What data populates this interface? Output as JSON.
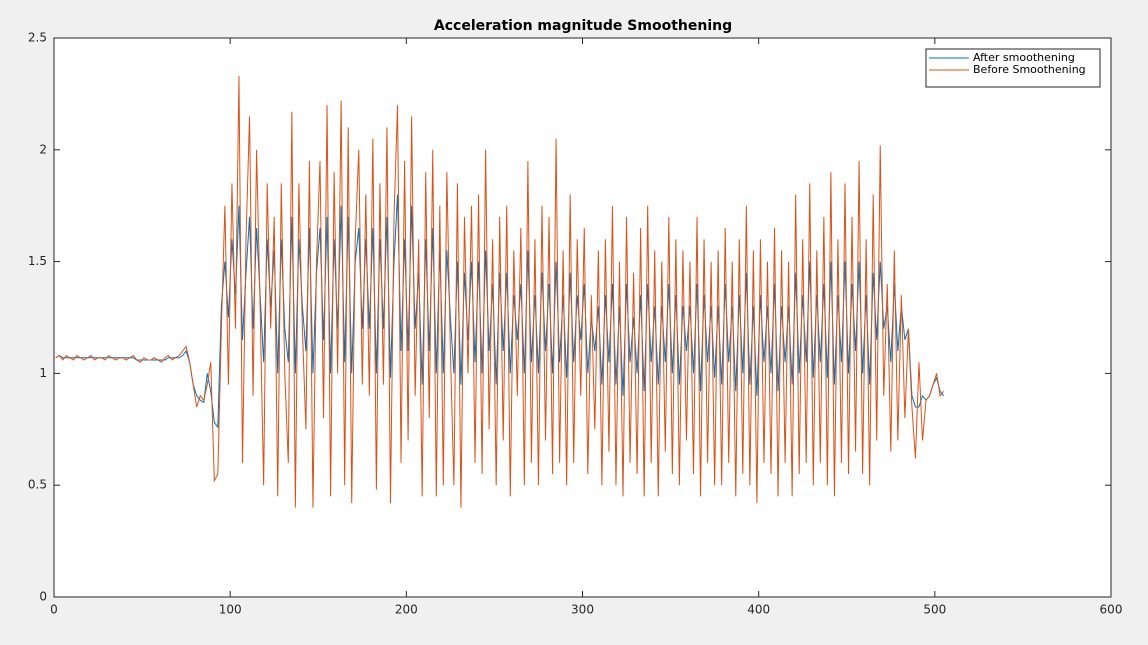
{
  "chart_data": {
    "type": "line",
    "title": "Acceleration magnitude Smoothening",
    "xlim": [
      0,
      600
    ],
    "xticks": [
      0,
      100,
      200,
      300,
      400,
      500,
      600
    ],
    "ylim": [
      0,
      2.5
    ],
    "yticks": [
      0,
      0.5,
      1,
      1.5,
      2,
      2.5
    ],
    "legend": "northeast",
    "grid": false,
    "x": [
      1,
      3,
      5,
      7,
      9,
      11,
      13,
      15,
      17,
      19,
      21,
      23,
      25,
      27,
      29,
      31,
      33,
      35,
      37,
      39,
      41,
      43,
      45,
      47,
      49,
      51,
      53,
      55,
      57,
      59,
      61,
      63,
      65,
      67,
      69,
      71,
      73,
      75,
      77,
      79,
      81,
      83,
      85,
      87,
      89,
      91,
      93,
      95,
      97,
      99,
      101,
      103,
      105,
      107,
      109,
      111,
      113,
      115,
      117,
      119,
      121,
      123,
      125,
      127,
      129,
      131,
      133,
      135,
      137,
      139,
      141,
      143,
      145,
      147,
      149,
      151,
      153,
      155,
      157,
      159,
      161,
      163,
      165,
      167,
      169,
      171,
      173,
      175,
      177,
      179,
      181,
      183,
      185,
      187,
      189,
      191,
      193,
      195,
      197,
      199,
      201,
      203,
      205,
      207,
      209,
      211,
      213,
      215,
      217,
      219,
      221,
      223,
      225,
      227,
      229,
      231,
      233,
      235,
      237,
      239,
      241,
      243,
      245,
      247,
      249,
      251,
      253,
      255,
      257,
      259,
      261,
      263,
      265,
      267,
      269,
      271,
      273,
      275,
      277,
      279,
      281,
      283,
      285,
      287,
      289,
      291,
      293,
      295,
      297,
      299,
      301,
      303,
      305,
      307,
      309,
      311,
      313,
      315,
      317,
      319,
      321,
      323,
      325,
      327,
      329,
      331,
      333,
      335,
      337,
      339,
      341,
      343,
      345,
      347,
      349,
      351,
      353,
      355,
      357,
      359,
      361,
      363,
      365,
      367,
      369,
      371,
      373,
      375,
      377,
      379,
      381,
      383,
      385,
      387,
      389,
      391,
      393,
      395,
      397,
      399,
      401,
      403,
      405,
      407,
      409,
      411,
      413,
      415,
      417,
      419,
      421,
      423,
      425,
      427,
      429,
      431,
      433,
      435,
      437,
      439,
      441,
      443,
      445,
      447,
      449,
      451,
      453,
      455,
      457,
      459,
      461,
      463,
      465,
      467,
      469,
      471,
      473,
      475,
      477,
      479,
      481,
      483,
      485,
      487,
      489,
      491,
      493,
      495,
      497,
      499,
      501,
      503,
      505
    ],
    "series": [
      {
        "name": "After smoothening",
        "color": "#0072bd",
        "values": [
          1.07,
          1.08,
          1.07,
          1.07,
          1.07,
          1.07,
          1.07,
          1.07,
          1.07,
          1.07,
          1.07,
          1.07,
          1.07,
          1.07,
          1.07,
          1.07,
          1.07,
          1.07,
          1.07,
          1.07,
          1.07,
          1.07,
          1.07,
          1.06,
          1.06,
          1.06,
          1.06,
          1.06,
          1.06,
          1.06,
          1.06,
          1.06,
          1.07,
          1.07,
          1.07,
          1.07,
          1.08,
          1.1,
          1.05,
          0.95,
          0.9,
          0.88,
          0.87,
          1.0,
          0.92,
          0.78,
          0.76,
          1.3,
          1.5,
          1.25,
          1.6,
          1.35,
          1.75,
          1.15,
          1.45,
          1.7,
          1.2,
          1.65,
          1.35,
          1.05,
          1.6,
          1.3,
          1.55,
          1.0,
          1.6,
          1.2,
          1.05,
          1.7,
          1.0,
          1.6,
          1.3,
          1.1,
          1.65,
          1.0,
          1.45,
          1.65,
          1.15,
          1.7,
          1.0,
          1.6,
          1.2,
          1.75,
          1.05,
          1.7,
          1.0,
          1.5,
          1.65,
          1.2,
          1.6,
          1.2,
          1.65,
          1.0,
          1.6,
          1.2,
          1.7,
          0.98,
          1.5,
          1.8,
          1.1,
          1.6,
          1.1,
          1.75,
          1.2,
          1.45,
          0.95,
          1.6,
          1.1,
          1.65,
          1.0,
          1.55,
          1.0,
          1.55,
          1.25,
          1.0,
          1.5,
          0.95,
          1.45,
          1.15,
          1.5,
          1.05,
          1.5,
          1.0,
          1.55,
          1.1,
          1.4,
          0.95,
          1.45,
          1.1,
          1.45,
          1.0,
          1.35,
          1.15,
          1.4,
          1.0,
          1.55,
          1.05,
          1.35,
          1.0,
          1.45,
          1.1,
          1.4,
          1.0,
          1.5,
          1.05,
          1.35,
          0.98,
          1.45,
          1.05,
          1.35,
          1.15,
          1.4,
          1.0,
          1.25,
          1.1,
          1.3,
          0.95,
          1.35,
          1.05,
          1.4,
          0.95,
          1.3,
          0.9,
          1.4,
          1.05,
          1.25,
          1.0,
          1.35,
          0.92,
          1.4,
          1.05,
          1.3,
          0.95,
          1.3,
          1.05,
          1.4,
          1.0,
          1.35,
          0.95,
          1.3,
          1.1,
          1.3,
          1.0,
          1.4,
          0.92,
          1.35,
          1.05,
          1.3,
          0.98,
          1.3,
          0.95,
          1.4,
          1.05,
          1.3,
          0.92,
          1.35,
          1.0,
          1.45,
          0.95,
          1.3,
          0.9,
          1.35,
          1.05,
          1.3,
          1.0,
          1.4,
          0.92,
          1.3,
          1.05,
          1.3,
          0.95,
          1.45,
          1.0,
          1.35,
          1.05,
          1.5,
          0.98,
          1.35,
          1.05,
          1.4,
          0.98,
          1.5,
          0.95,
          1.35,
          1.05,
          1.5,
          1.0,
          1.4,
          1.1,
          1.5,
          1.0,
          1.35,
          0.95,
          1.45,
          1.15,
          1.5,
          1.2,
          1.3,
          1.05,
          1.4,
          1.1,
          1.3,
          1.15,
          1.2,
          0.9,
          0.85,
          0.85,
          0.9,
          0.88,
          0.9,
          0.95,
          0.98,
          0.92,
          0.9
        ]
      },
      {
        "name": "Before Smoothening",
        "color": "#d95319",
        "values": [
          1.07,
          1.08,
          1.06,
          1.08,
          1.07,
          1.06,
          1.08,
          1.07,
          1.06,
          1.07,
          1.08,
          1.06,
          1.07,
          1.07,
          1.06,
          1.08,
          1.07,
          1.06,
          1.07,
          1.07,
          1.06,
          1.07,
          1.08,
          1.06,
          1.05,
          1.07,
          1.06,
          1.06,
          1.07,
          1.06,
          1.05,
          1.07,
          1.08,
          1.06,
          1.07,
          1.08,
          1.1,
          1.12,
          1.05,
          0.95,
          0.85,
          0.9,
          0.88,
          0.95,
          1.05,
          0.52,
          0.55,
          1.2,
          1.75,
          0.95,
          1.85,
          1.2,
          2.33,
          0.6,
          1.6,
          2.15,
          0.9,
          2.0,
          1.3,
          0.5,
          1.85,
          1.2,
          1.7,
          0.45,
          1.85,
          1.0,
          0.6,
          2.17,
          0.4,
          1.85,
          1.2,
          0.75,
          1.95,
          0.4,
          1.5,
          1.95,
          0.8,
          2.2,
          0.45,
          1.9,
          1.0,
          2.22,
          0.5,
          2.1,
          0.42,
          1.6,
          2.0,
          0.95,
          1.8,
          0.9,
          2.05,
          0.48,
          1.85,
          0.95,
          2.1,
          0.42,
          1.7,
          2.2,
          0.6,
          1.95,
          0.7,
          2.15,
          0.9,
          1.6,
          0.45,
          1.9,
          0.8,
          2.0,
          0.45,
          1.75,
          0.5,
          1.9,
          1.1,
          0.5,
          1.85,
          0.4,
          1.7,
          1.0,
          1.75,
          0.6,
          1.8,
          0.55,
          2.0,
          0.75,
          1.6,
          0.5,
          1.7,
          0.7,
          1.75,
          0.45,
          1.55,
          0.9,
          1.65,
          0.5,
          1.95,
          0.6,
          1.6,
          0.5,
          1.75,
          0.7,
          1.7,
          0.55,
          2.05,
          0.6,
          1.55,
          0.5,
          1.8,
          0.6,
          1.6,
          0.9,
          1.65,
          0.55,
          1.35,
          0.75,
          1.55,
          0.5,
          1.6,
          0.65,
          1.75,
          0.5,
          1.5,
          0.45,
          1.7,
          0.6,
          1.45,
          0.55,
          1.65,
          0.45,
          1.75,
          0.6,
          1.55,
          0.45,
          1.5,
          0.65,
          1.7,
          0.55,
          1.6,
          0.5,
          1.55,
          0.7,
          1.5,
          0.55,
          1.7,
          0.45,
          1.6,
          0.6,
          1.5,
          0.5,
          1.55,
          0.5,
          1.65,
          0.6,
          1.5,
          0.45,
          1.6,
          0.55,
          1.75,
          0.5,
          1.55,
          0.42,
          1.6,
          0.6,
          1.5,
          0.55,
          1.65,
          0.45,
          1.55,
          0.6,
          1.5,
          0.45,
          1.8,
          0.55,
          1.6,
          0.6,
          1.85,
          0.5,
          1.55,
          0.6,
          1.7,
          0.5,
          1.9,
          0.45,
          1.6,
          0.6,
          1.85,
          0.55,
          1.7,
          0.65,
          1.95,
          0.55,
          1.6,
          0.5,
          1.8,
          0.7,
          2.02,
          0.9,
          1.4,
          0.65,
          1.55,
          0.7,
          1.35,
          0.8,
          1.2,
          0.85,
          0.62,
          1.05,
          0.7,
          0.88,
          0.9,
          0.95,
          1.0,
          0.9,
          0.92
        ]
      }
    ]
  }
}
